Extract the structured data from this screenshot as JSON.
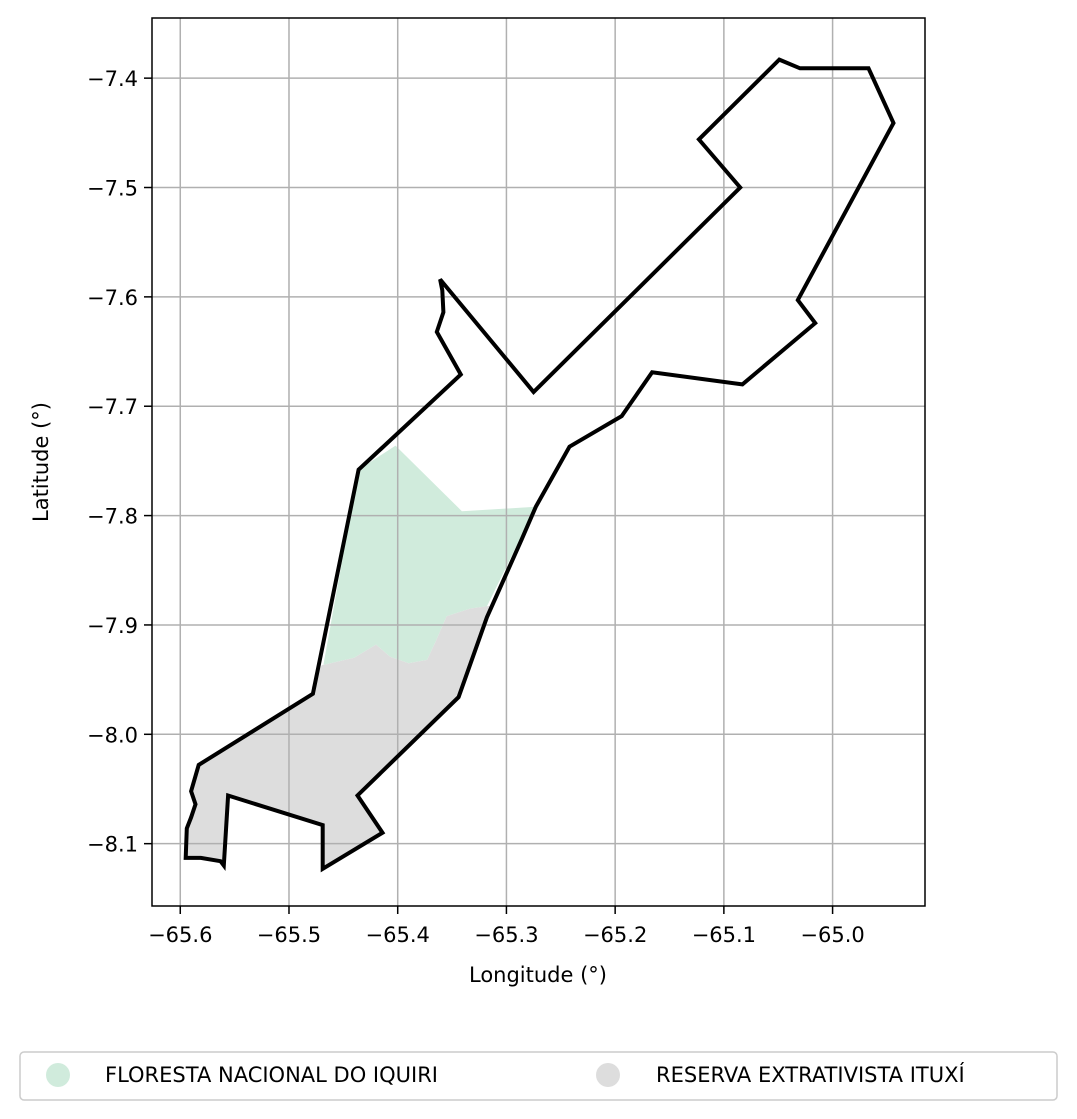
{
  "map": {
    "xlabel": "Longitude (°)",
    "ylabel": "Latitude (°)",
    "xlim": [
      -65.626,
      -64.915
    ],
    "ylim": [
      -8.157,
      -7.345
    ],
    "grid": true,
    "x_ticks": [
      {
        "value": -65.6,
        "label": "−65.6"
      },
      {
        "value": -65.5,
        "label": "−65.5"
      },
      {
        "value": -65.4,
        "label": "−65.4"
      },
      {
        "value": -65.3,
        "label": "−65.3"
      },
      {
        "value": -65.2,
        "label": "−65.2"
      },
      {
        "value": -65.1,
        "label": "−65.1"
      },
      {
        "value": -65.0,
        "label": "−65.0"
      }
    ],
    "y_ticks": [
      {
        "value": -7.4,
        "label": "−7.4"
      },
      {
        "value": -7.5,
        "label": "−7.5"
      },
      {
        "value": -7.6,
        "label": "−7.6"
      },
      {
        "value": -7.7,
        "label": "−7.7"
      },
      {
        "value": -7.8,
        "label": "−7.8"
      },
      {
        "value": -7.9,
        "label": "−7.9"
      },
      {
        "value": -8.0,
        "label": "−8.0"
      },
      {
        "value": -8.1,
        "label": "−8.1"
      }
    ],
    "areas": [
      {
        "name": "FLORESTA NACIONAL DO IQUIRI",
        "color": "#d0ebdc",
        "coordinates": [
          [
            -65.402,
            -7.736
          ],
          [
            -65.341,
            -7.796
          ],
          [
            -65.273,
            -7.792
          ],
          [
            -65.318,
            -7.883
          ],
          [
            -65.333,
            -7.885
          ],
          [
            -65.355,
            -7.892
          ],
          [
            -65.365,
            -7.915
          ],
          [
            -65.373,
            -7.932
          ],
          [
            -65.39,
            -7.935
          ],
          [
            -65.407,
            -7.929
          ],
          [
            -65.42,
            -7.918
          ],
          [
            -65.44,
            -7.93
          ],
          [
            -65.47,
            -7.937
          ],
          [
            -65.469,
            -7.94
          ],
          [
            -65.436,
            -7.758
          ]
        ]
      },
      {
        "name": "RESERVA EXTRATIVISTA ITUXÍ",
        "color": "#dddddd",
        "coordinates": [
          [
            -65.311,
            -7.882
          ],
          [
            -65.333,
            -7.885
          ],
          [
            -65.355,
            -7.892
          ],
          [
            -65.365,
            -7.915
          ],
          [
            -65.373,
            -7.932
          ],
          [
            -65.39,
            -7.935
          ],
          [
            -65.407,
            -7.929
          ],
          [
            -65.42,
            -7.918
          ],
          [
            -65.44,
            -7.93
          ],
          [
            -65.47,
            -7.937
          ],
          [
            -65.479,
            -7.957
          ],
          [
            -65.478,
            -7.963
          ],
          [
            -65.583,
            -8.028
          ],
          [
            -65.59,
            -8.052
          ],
          [
            -65.586,
            -8.064
          ],
          [
            -65.59,
            -8.076
          ],
          [
            -65.594,
            -8.086
          ],
          [
            -65.595,
            -8.113
          ],
          [
            -65.581,
            -8.113
          ],
          [
            -65.563,
            -8.116
          ],
          [
            -65.56,
            -8.12
          ],
          [
            -65.556,
            -8.056
          ],
          [
            -65.469,
            -8.083
          ],
          [
            -65.469,
            -8.123
          ],
          [
            -65.414,
            -8.09
          ],
          [
            -65.437,
            -8.056
          ],
          [
            -65.344,
            -7.966
          ],
          [
            -65.318,
            -7.893
          ]
        ]
      }
    ],
    "outline_coordinates": [
      [
        -65.049,
        -7.383
      ],
      [
        -65.03,
        -7.391
      ],
      [
        -64.967,
        -7.391
      ],
      [
        -64.944,
        -7.441
      ],
      [
        -65.032,
        -7.603
      ],
      [
        -65.016,
        -7.624
      ],
      [
        -65.083,
        -7.68
      ],
      [
        -65.166,
        -7.669
      ],
      [
        -65.194,
        -7.709
      ],
      [
        -65.242,
        -7.737
      ],
      [
        -65.273,
        -7.792
      ],
      [
        -65.286,
        -7.822
      ],
      [
        -65.318,
        -7.893
      ],
      [
        -65.344,
        -7.966
      ],
      [
        -65.437,
        -8.056
      ],
      [
        -65.414,
        -8.09
      ],
      [
        -65.469,
        -8.123
      ],
      [
        -65.469,
        -8.083
      ],
      [
        -65.556,
        -8.056
      ],
      [
        -65.56,
        -8.12
      ],
      [
        -65.563,
        -8.116
      ],
      [
        -65.581,
        -8.113
      ],
      [
        -65.595,
        -8.113
      ],
      [
        -65.594,
        -8.086
      ],
      [
        -65.59,
        -8.076
      ],
      [
        -65.586,
        -8.064
      ],
      [
        -65.59,
        -8.052
      ],
      [
        -65.583,
        -8.028
      ],
      [
        -65.478,
        -7.963
      ],
      [
        -65.436,
        -7.758
      ],
      [
        -65.342,
        -7.671
      ],
      [
        -65.364,
        -7.632
      ],
      [
        -65.358,
        -7.614
      ],
      [
        -65.359,
        -7.594
      ],
      [
        -65.361,
        -7.584
      ],
      [
        -65.275,
        -7.687
      ],
      [
        -65.085,
        -7.5
      ],
      [
        -65.123,
        -7.456
      ]
    ],
    "legend": {
      "placement": "bottom-center",
      "entries": [
        {
          "label": "FLORESTA NACIONAL DO IQUIRI",
          "color": "#d0ebdc"
        },
        {
          "label": "RESERVA EXTRATIVISTA ITUXÍ",
          "color": "#dddddd"
        }
      ]
    }
  }
}
